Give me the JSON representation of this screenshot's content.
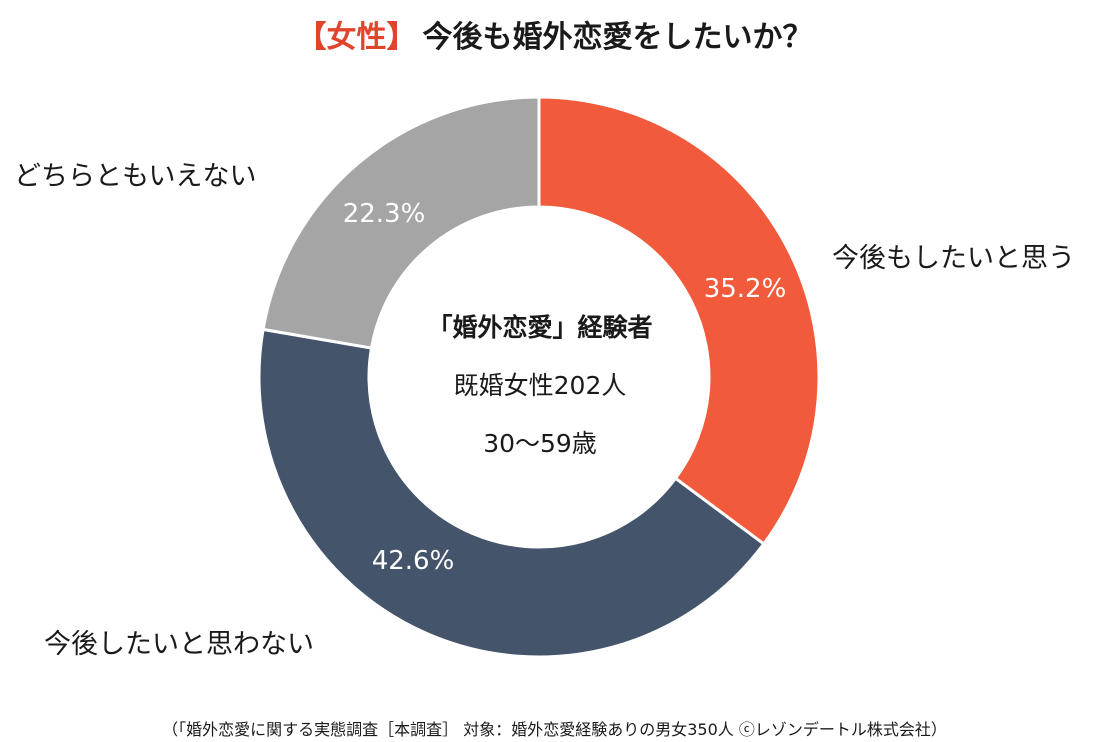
{
  "title": {
    "tag": "【女性】",
    "main": "今後も婚外恋愛をしたいか？"
  },
  "center": {
    "line1": "「婚外恋愛」経験者",
    "line2": "既婚女性202人",
    "line3": "30～59歳"
  },
  "footer": "（「婚外恋愛に関する実態調査［本調査］ 対象：婚外恋愛経験ありの男女350人 ⓒレゾンデートル株式会社）",
  "chart_data": {
    "type": "pie",
    "style": "donut",
    "title": "【女性】今後も婚外恋愛をしたいか？",
    "categories": [
      "今後もしたいと思う",
      "今後したいと思わない",
      "どちらともいえない"
    ],
    "values": [
      35.2,
      42.6,
      22.3
    ],
    "value_labels": [
      "35.2%",
      "42.6%",
      "22.3%"
    ],
    "colors": [
      "#f25a3c",
      "#44546a",
      "#a5a5a5"
    ],
    "unit": "%",
    "start": "top",
    "direction": "clockwise"
  }
}
